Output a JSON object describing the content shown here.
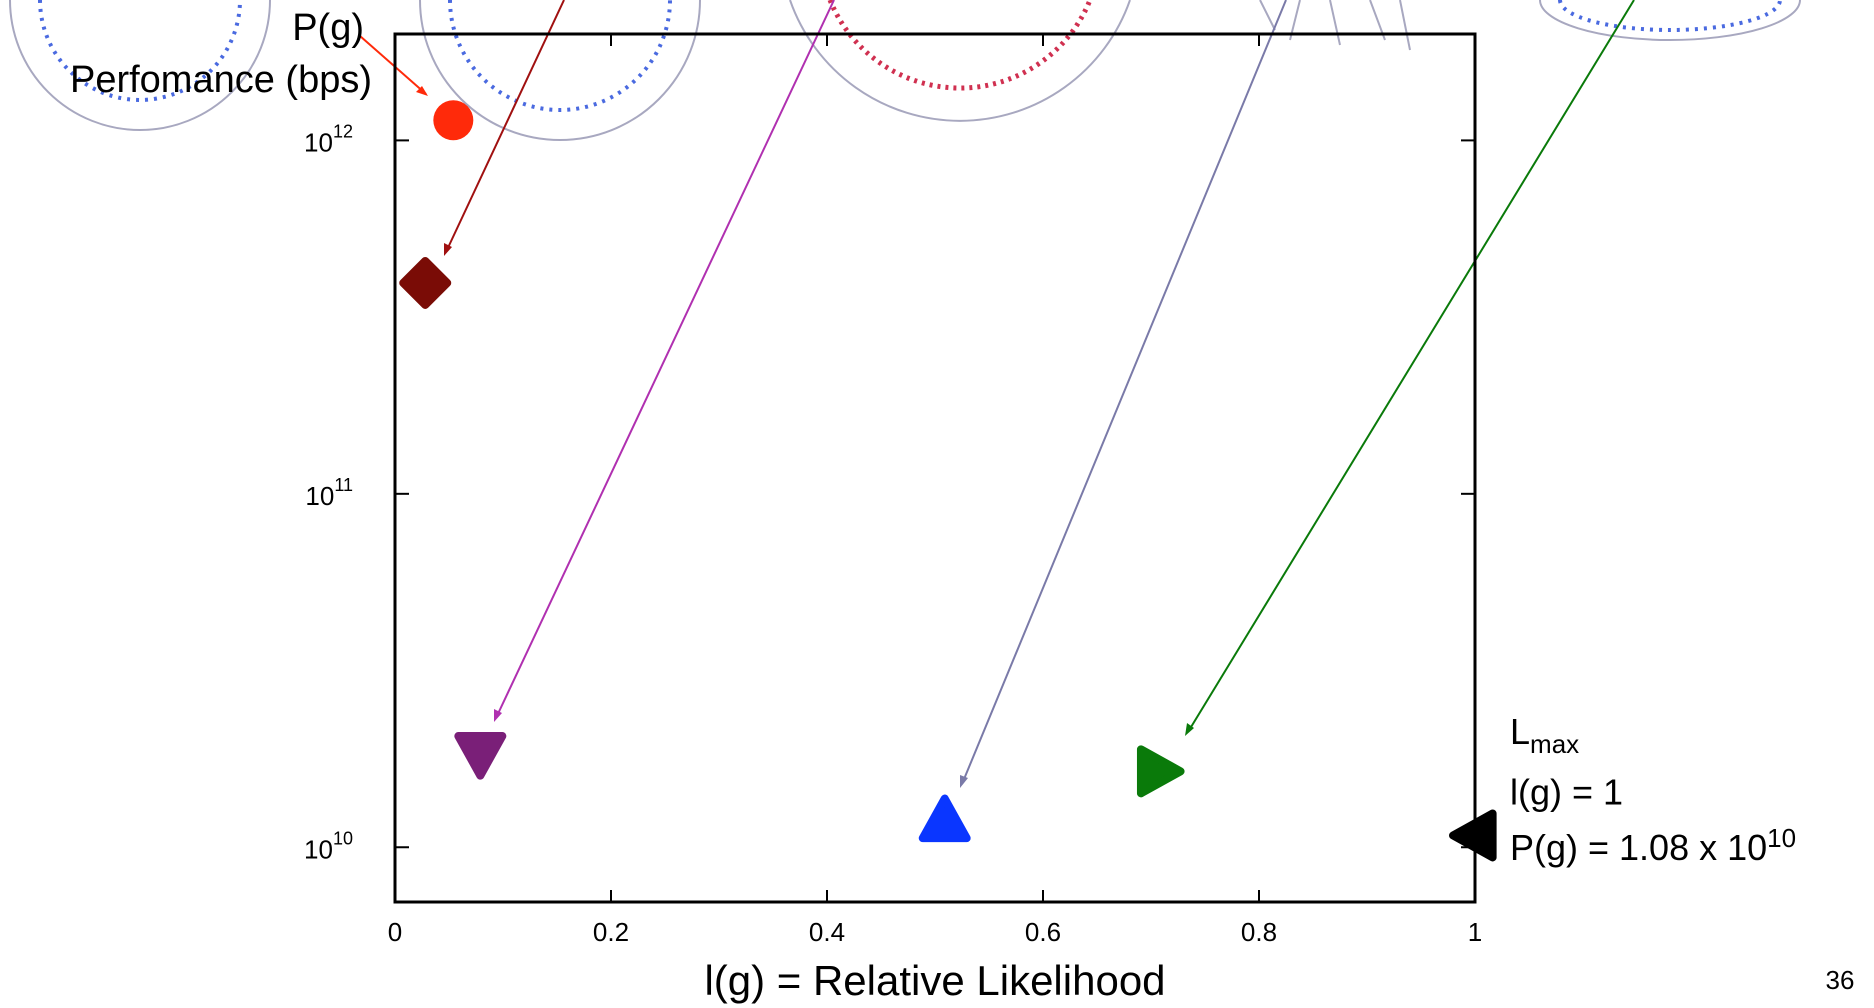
{
  "chart_data": {
    "type": "scatter",
    "y_label_lines": [
      "P(g)",
      "Perfomance (bps)"
    ],
    "x_label": "l(g) = Relative Likelihood",
    "log_y": true,
    "xlim": [
      0,
      1
    ],
    "xticks": [
      0,
      0.2,
      0.4,
      0.6,
      0.8,
      1
    ],
    "ylim": [
      7000000000,
      2000000000000
    ],
    "yticks": [
      {
        "value": 10000000000,
        "label": "10",
        "exponent": "10"
      },
      {
        "value": 100000000000,
        "label": "10",
        "exponent": "11"
      },
      {
        "value": 1000000000000,
        "label": "10",
        "exponent": "12"
      }
    ],
    "series": [
      {
        "marker": "circle",
        "color": "#ff2a0a",
        "x": [
          0.054
        ],
        "values": [
          1140000000000
        ]
      },
      {
        "marker": "diamond",
        "color": "#7a0c06",
        "x": [
          0.028
        ],
        "values": [
          395000000000
        ]
      },
      {
        "marker": "triangle-down",
        "color": "#7a1f78",
        "x": [
          0.079
        ],
        "values": [
          18400000000
        ]
      },
      {
        "marker": "triangle-up",
        "color": "#0a36ff",
        "x": [
          0.509
        ],
        "values": [
          11900000000
        ]
      },
      {
        "marker": "triangle-right",
        "color": "#0a7a0a",
        "x": [
          0.707
        ],
        "values": [
          16400000000
        ]
      },
      {
        "marker": "triangle-left",
        "color": "#000000",
        "x": [
          1
        ],
        "values": [
          10800000000
        ]
      }
    ],
    "annotation": {
      "l_base": "L",
      "l_sub": "max",
      "line2": "l(g) = 1",
      "line3": "P(g) = 1.08 x 10",
      "line3_exp": "10"
    },
    "page_number": "36"
  }
}
